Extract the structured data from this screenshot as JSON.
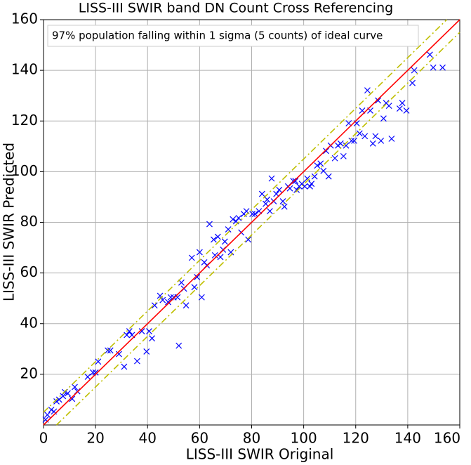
{
  "chart_data": {
    "type": "scatter",
    "title": "LISS-III SWIR band DN Count Cross Referencing",
    "annotation": "97% population falling within 1 sigma (5 counts) of ideal curve",
    "x_label": "LISS-III SWIR Original",
    "y_label": "LISS-III SWIR Predicted",
    "xlim": [
      0,
      160
    ],
    "ylim": [
      0,
      160
    ],
    "xticks": [
      0,
      20,
      40,
      60,
      80,
      100,
      120,
      140,
      160
    ],
    "yticks": [
      20,
      40,
      60,
      80,
      100,
      120,
      140,
      160
    ],
    "grid": true,
    "series": [
      {
        "type": "scatter",
        "marker": "x",
        "color": "#0000ff",
        "x": [
          0.8,
          1.5,
          3,
          4,
          5,
          6,
          7.5,
          8.2,
          9.3,
          11,
          12,
          13,
          17,
          19,
          20,
          21,
          24.7,
          25.7,
          29,
          31,
          32,
          33,
          34,
          36,
          37.8,
          39.6,
          40.6,
          41.7,
          42.7,
          44.8,
          45.8,
          47.9,
          48.9,
          50,
          51.5,
          52,
          53,
          54,
          54.8,
          57,
          58,
          59,
          60,
          60.8,
          61.8,
          62.8,
          63.8,
          65.4,
          65.9,
          67,
          68,
          69,
          69.7,
          71,
          72,
          72.8,
          74,
          75,
          76,
          77,
          78,
          78.7,
          80.3,
          81.3,
          82.8,
          84,
          85.4,
          86,
          87,
          87.7,
          88.5,
          89.5,
          90.6,
          92,
          92.6,
          94,
          94.7,
          96,
          96.8,
          97.3,
          98.3,
          99.3,
          100.4,
          101.4,
          102.4,
          103,
          104.2,
          105.2,
          106.5,
          107.6,
          108.6,
          109.6,
          110.4,
          112,
          113.2,
          114.2,
          115.3,
          116.3,
          117.3,
          118.4,
          119.4,
          120.4,
          121.5,
          122.5,
          123.5,
          124.5,
          125.6,
          126.6,
          127.6,
          128.6,
          129.7,
          130.7,
          131.7,
          132.8,
          133.8,
          136.9,
          137.9,
          139.5,
          141.8,
          142.5,
          148.5,
          149.8,
          153.4
        ],
        "values": [
          2.1,
          4,
          6,
          5.3,
          9.3,
          10,
          11.4,
          13,
          12.5,
          10.3,
          15,
          13.3,
          19,
          20.7,
          20.7,
          25,
          29.4,
          29.4,
          28,
          23,
          35.5,
          37,
          35.5,
          25.2,
          37,
          29,
          37,
          34.2,
          47.2,
          51,
          49.3,
          48.5,
          50.4,
          50.4,
          50.4,
          31.3,
          56.2,
          53.8,
          47.2,
          66,
          54.4,
          58.4,
          68.2,
          50.4,
          64.2,
          63,
          79.3,
          73.2,
          67,
          74.3,
          66.3,
          69.2,
          72.4,
          77.2,
          68.2,
          81.2,
          80.4,
          81.7,
          76,
          83.3,
          84.4,
          73.2,
          83.3,
          83.3,
          84.4,
          91.2,
          87.3,
          89,
          84.4,
          97.3,
          88.3,
          91.2,
          92.8,
          88.3,
          86.2,
          94.2,
          93.4,
          96.3,
          96.3,
          92.8,
          94.2,
          95.2,
          94.2,
          97.3,
          94.2,
          95.2,
          98.1,
          102.4,
          103.2,
          100.3,
          108.2,
          98.1,
          110.3,
          105.3,
          110.3,
          111.1,
          106.1,
          110.3,
          119.1,
          112.2,
          112.2,
          119.1,
          115.1,
          124.1,
          114,
          132.1,
          124.1,
          111.1,
          114,
          128.1,
          112.2,
          121,
          127.1,
          126,
          113,
          124.9,
          127.1,
          124.1,
          135,
          140,
          146.2,
          141.1,
          141.1
        ]
      },
      {
        "type": "line",
        "color": "#ff0000",
        "x": [
          0,
          160
        ],
        "values": [
          0,
          160
        ]
      },
      {
        "type": "line",
        "color": "#bfbf00",
        "dash": "dashdot",
        "x": [
          0,
          155
        ],
        "values": [
          5,
          160
        ]
      },
      {
        "type": "line",
        "color": "#bfbf00",
        "dash": "dashdot",
        "x": [
          5,
          160
        ],
        "values": [
          0,
          155
        ]
      }
    ]
  }
}
